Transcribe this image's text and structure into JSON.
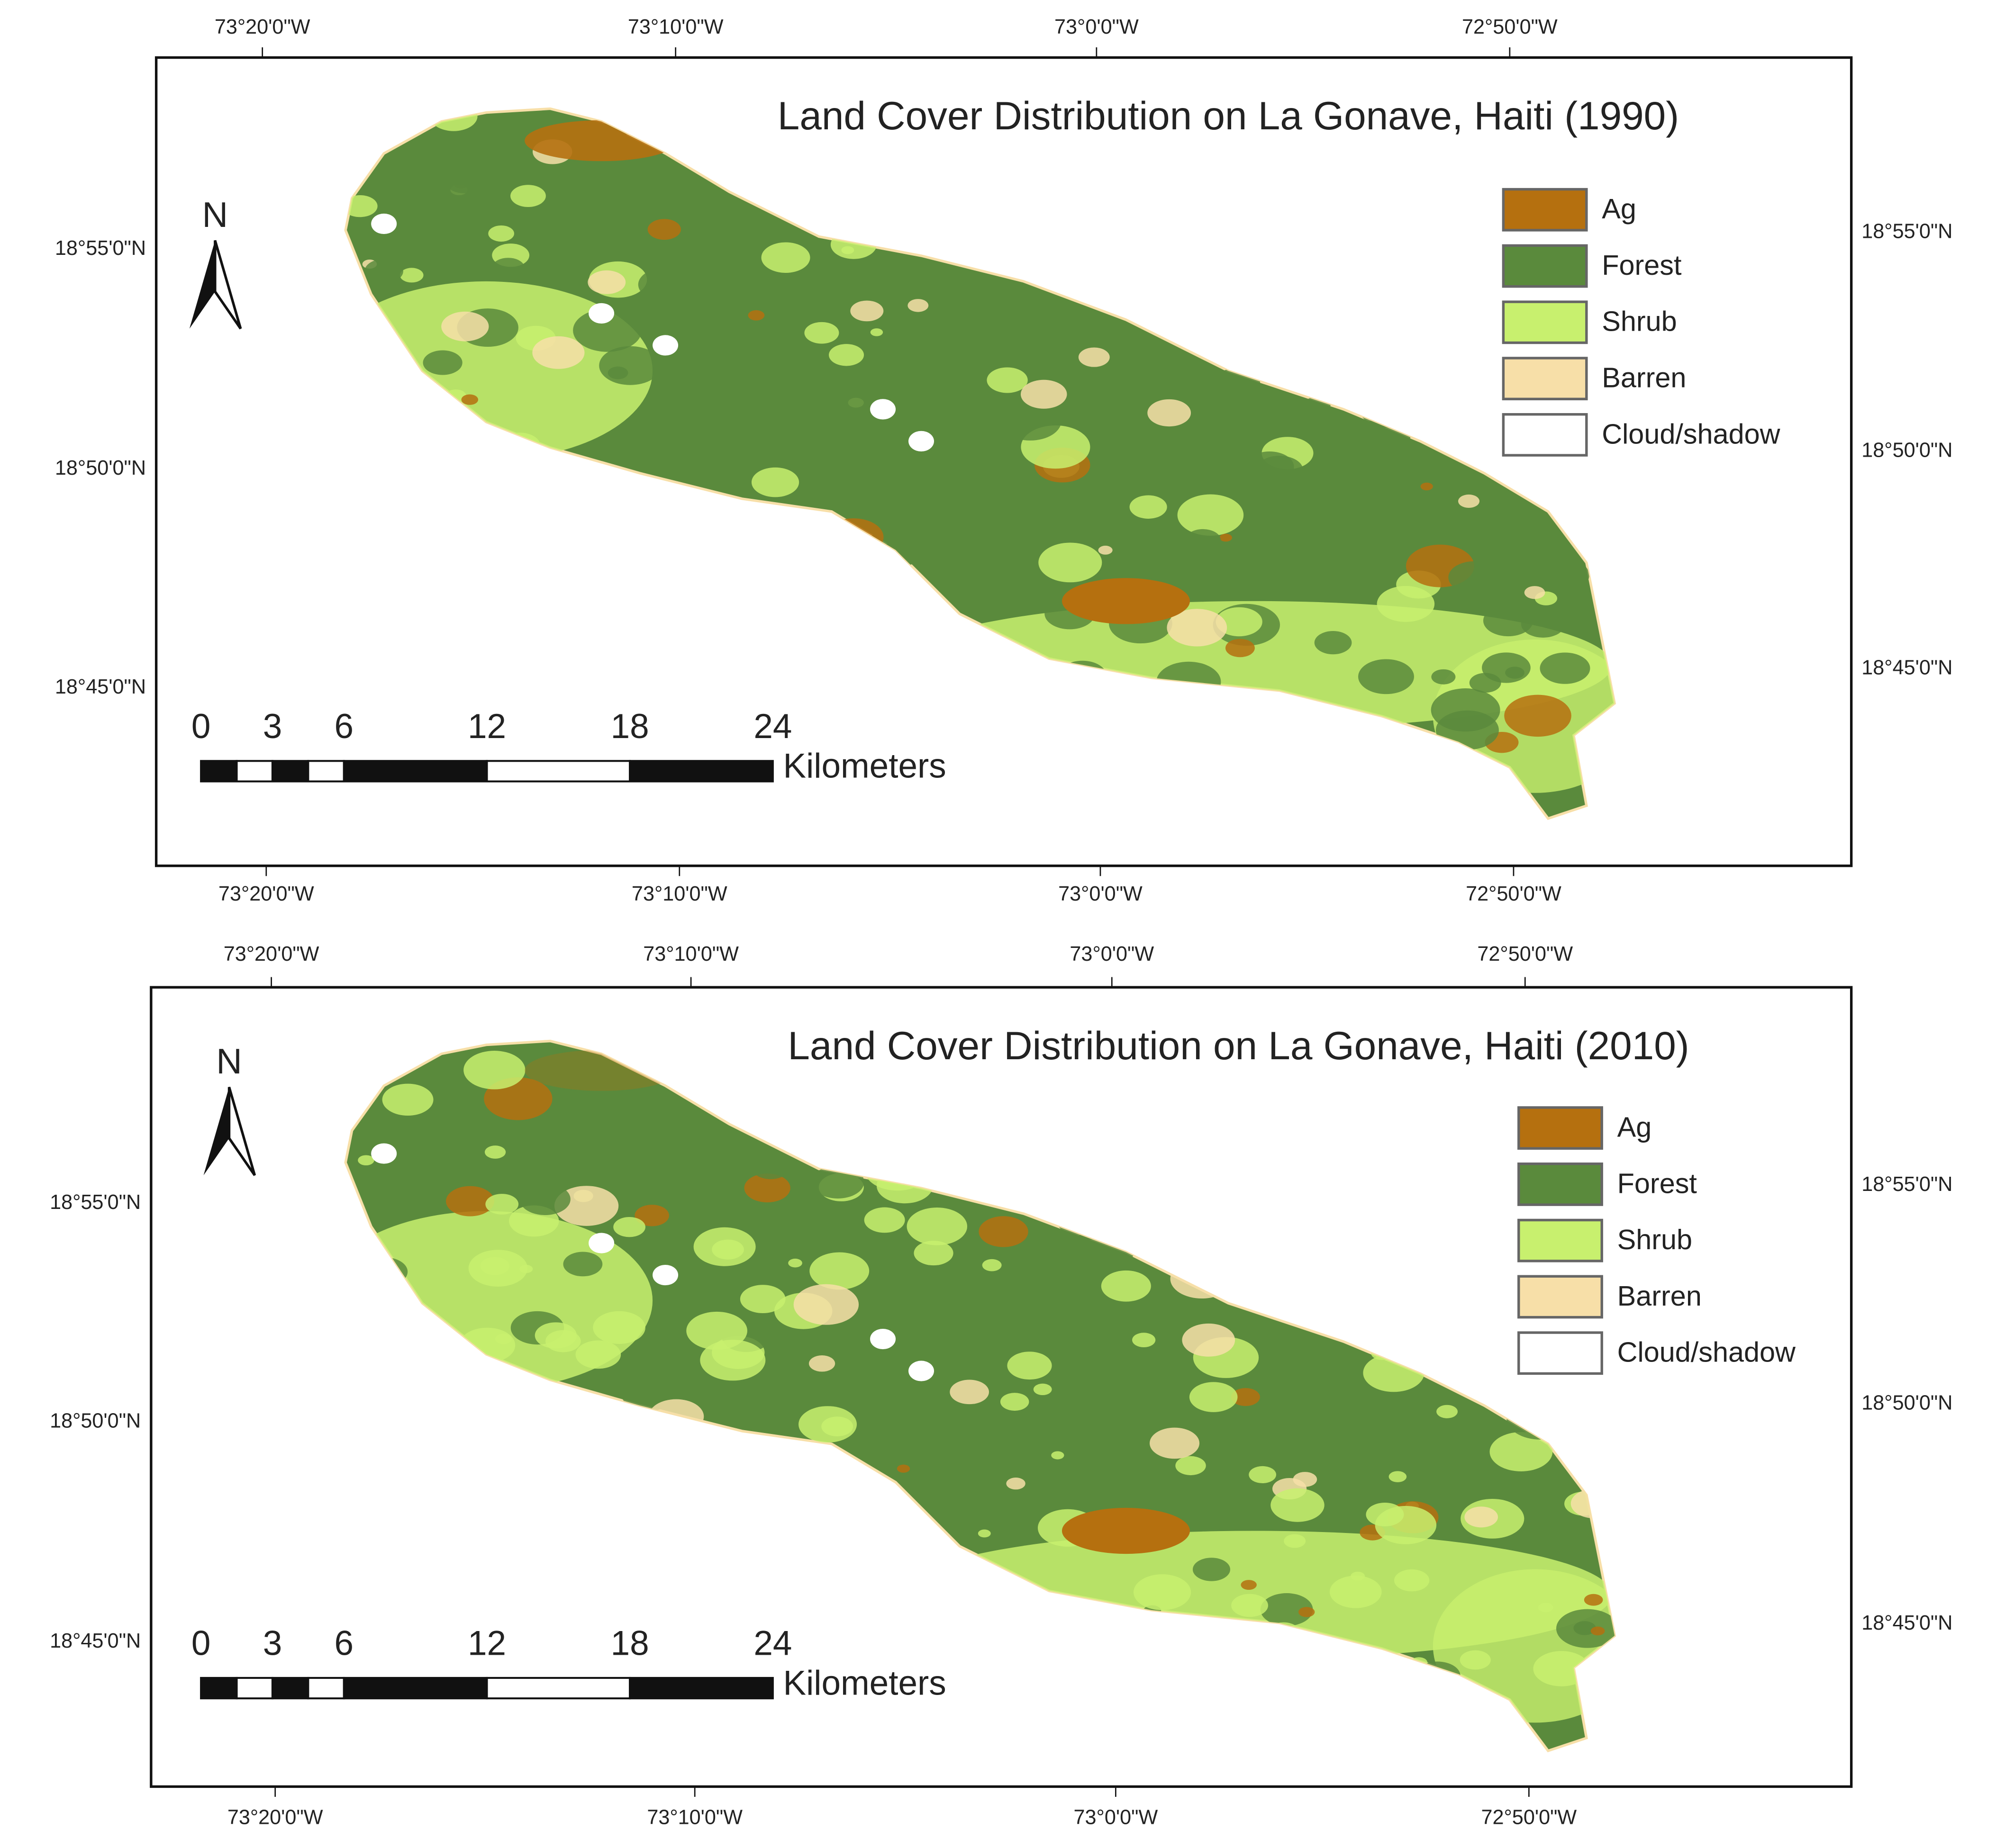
{
  "maps": [
    {
      "title": "Land Cover Distribution on La Gonave, Haiti (1990)",
      "lon_labels": [
        "73°20'0\"W",
        "73°10'0\"W",
        "73°0'0\"W",
        "72°50'0\"W"
      ],
      "lat_labels": [
        "18°55'0\"N",
        "18°50'0\"N",
        "18°45'0\"N"
      ],
      "north": "N",
      "legend": [
        {
          "label": "Ag",
          "color": "#b5700f"
        },
        {
          "label": "Forest",
          "color": "#5a8a3c"
        },
        {
          "label": "Shrub",
          "color": "#c8f06e"
        },
        {
          "label": "Barren",
          "color": "#f7dfa8"
        },
        {
          "label": "Cloud/shadow",
          "color": "#ffffff"
        }
      ],
      "scale": {
        "ticks": [
          0,
          3,
          6,
          12,
          18,
          24
        ],
        "unit": "Kilometers"
      }
    },
    {
      "title": "Land Cover Distribution on La Gonave, Haiti (2010)",
      "lon_labels": [
        "73°20'0\"W",
        "73°10'0\"W",
        "73°0'0\"W",
        "72°50'0\"W"
      ],
      "lat_labels": [
        "18°55'0\"N",
        "18°50'0\"N",
        "18°45'0\"N"
      ],
      "north": "N",
      "legend": [
        {
          "label": "Ag",
          "color": "#b5700f"
        },
        {
          "label": "Forest",
          "color": "#5a8a3c"
        },
        {
          "label": "Shrub",
          "color": "#c8f06e"
        },
        {
          "label": "Barren",
          "color": "#f7dfa8"
        },
        {
          "label": "Cloud/shadow",
          "color": "#ffffff"
        }
      ],
      "scale": {
        "ticks": [
          0,
          3,
          6,
          12,
          18,
          24
        ],
        "unit": "Kilometers"
      }
    }
  ]
}
